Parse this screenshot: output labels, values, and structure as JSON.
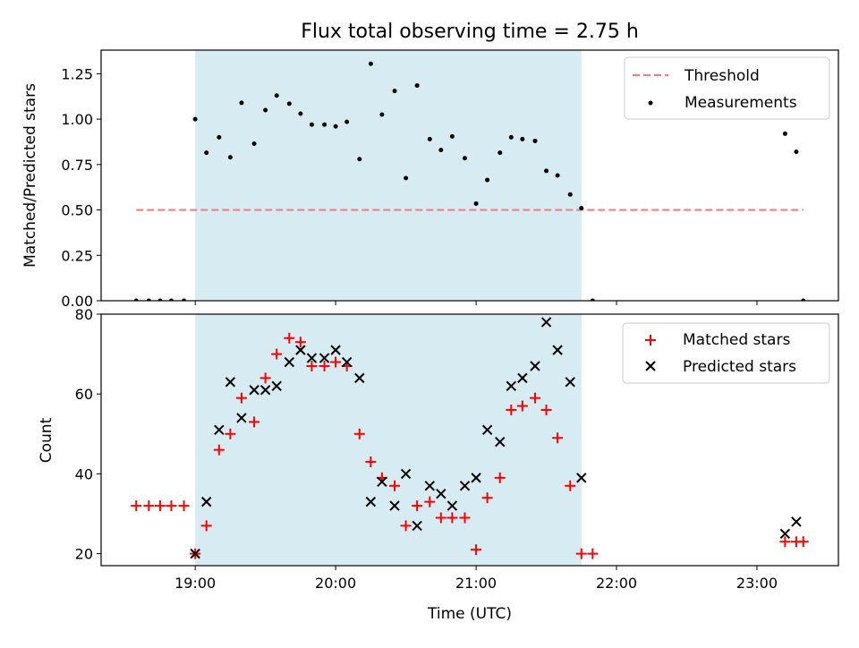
{
  "title": "Flux total observing time = 2.75 h",
  "chart_data": [
    {
      "type": "scatter",
      "ylabel": "Matched/Predicted stars",
      "xlabel": "",
      "xlim": [
        18.33,
        23.58
      ],
      "ylim": [
        0,
        1.38
      ],
      "yticks": [
        0,
        0.25,
        0.5,
        0.75,
        1.0,
        1.25
      ],
      "ytick_labels": [
        "0.00",
        "0.25",
        "0.50",
        "0.75",
        "1.00",
        "1.25"
      ],
      "shaded_span": [
        19.0,
        21.75
      ],
      "threshold": {
        "label": "Threshold",
        "value": 0.5,
        "x_range": [
          18.58,
          23.33
        ],
        "color": "#f08080"
      },
      "legend": [
        "Threshold",
        "Measurements"
      ],
      "series": [
        {
          "name": "Measurements",
          "x": [
            18.58,
            18.67,
            18.75,
            18.83,
            18.92,
            19.0,
            19.08,
            19.17,
            19.25,
            19.33,
            19.42,
            19.5,
            19.58,
            19.67,
            19.75,
            19.83,
            19.92,
            20.0,
            20.08,
            20.17,
            20.25,
            20.33,
            20.42,
            20.5,
            20.58,
            20.67,
            20.75,
            20.83,
            20.92,
            21.0,
            21.08,
            21.17,
            21.25,
            21.33,
            21.42,
            21.5,
            21.58,
            21.67,
            21.75,
            21.83,
            23.2,
            23.28,
            23.33
          ],
          "y": [
            0,
            0,
            0,
            0,
            0,
            1.0,
            0.815,
            0.9,
            0.79,
            1.09,
            0.865,
            1.05,
            1.13,
            1.085,
            1.03,
            0.97,
            0.97,
            0.96,
            0.985,
            0.78,
            1.305,
            1.025,
            1.155,
            0.675,
            1.185,
            0.89,
            0.83,
            0.905,
            0.785,
            0.535,
            0.665,
            0.815,
            0.9,
            0.89,
            0.88,
            0.715,
            0.69,
            0.585,
            0.51,
            0,
            0.92,
            0.82,
            0
          ]
        }
      ]
    },
    {
      "type": "scatter",
      "ylabel": "Count",
      "xlabel": "Time (UTC)",
      "xlim": [
        18.33,
        23.58
      ],
      "ylim": [
        17,
        80
      ],
      "yticks": [
        20,
        40,
        60,
        80
      ],
      "ytick_labels": [
        "20",
        "40",
        "60",
        "80"
      ],
      "xticks": [
        19,
        20,
        21,
        22,
        23
      ],
      "xtick_labels": [
        "19:00",
        "20:00",
        "21:00",
        "22:00",
        "23:00"
      ],
      "shaded_span": [
        19.0,
        21.75
      ],
      "legend": [
        "Matched stars",
        "Predicted stars"
      ],
      "series": [
        {
          "name": "Matched stars",
          "marker": "+",
          "color": "#ff0000",
          "x": [
            18.58,
            18.67,
            18.75,
            18.83,
            18.92,
            19.0,
            19.08,
            19.17,
            19.25,
            19.33,
            19.42,
            19.5,
            19.58,
            19.67,
            19.75,
            19.83,
            19.92,
            20.0,
            20.08,
            20.17,
            20.25,
            20.33,
            20.42,
            20.5,
            20.58,
            20.67,
            20.75,
            20.83,
            20.92,
            21.0,
            21.08,
            21.17,
            21.25,
            21.33,
            21.42,
            21.5,
            21.58,
            21.67,
            21.75,
            21.83,
            23.2,
            23.28,
            23.33
          ],
          "y": [
            32,
            32,
            32,
            32,
            32,
            20,
            27,
            46,
            50,
            59,
            53,
            64,
            70,
            74,
            73,
            67,
            67,
            68,
            67,
            50,
            43,
            39,
            37,
            27,
            32,
            33,
            29,
            29,
            29,
            21,
            34,
            39,
            56,
            57,
            59,
            56,
            49,
            37,
            20,
            20,
            23,
            23,
            23
          ]
        },
        {
          "name": "Predicted stars",
          "marker": "x",
          "color": "#000000",
          "x": [
            19.0,
            19.08,
            19.17,
            19.25,
            19.33,
            19.42,
            19.5,
            19.58,
            19.67,
            19.75,
            19.83,
            19.92,
            20.0,
            20.08,
            20.17,
            20.25,
            20.33,
            20.42,
            20.5,
            20.58,
            20.67,
            20.75,
            20.83,
            20.92,
            21.0,
            21.08,
            21.17,
            21.25,
            21.33,
            21.42,
            21.5,
            21.58,
            21.67,
            21.75,
            23.2,
            23.28
          ],
          "y": [
            20,
            33,
            51,
            63,
            54,
            61,
            61,
            62,
            68,
            71,
            69,
            69,
            71,
            68,
            64,
            33,
            38,
            32,
            40,
            27,
            37,
            35,
            32,
            37,
            39,
            51,
            48,
            62,
            64,
            67,
            78,
            71,
            63,
            39,
            25,
            28
          ]
        }
      ]
    }
  ]
}
